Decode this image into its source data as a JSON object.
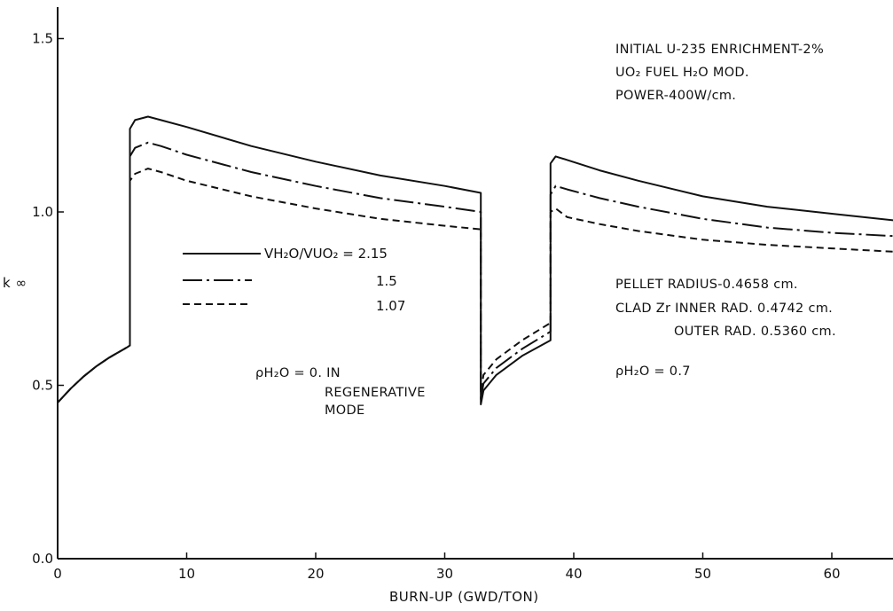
{
  "chart_data": {
    "type": "line",
    "title": "",
    "xlabel": "BURN-UP (GWD/TON)",
    "ylabel": "k ∞",
    "xlim": [
      0,
      65
    ],
    "ylim": [
      0.0,
      1.5
    ],
    "x_ticks": [
      "0",
      "10",
      "20",
      "30",
      "40",
      "50",
      "60"
    ],
    "y_ticks": [
      "0.0",
      "0.5",
      "1.0",
      "1.5"
    ],
    "grid": false,
    "legend_header": "VH₂O/VUO₂ = 2.15",
    "series": [
      {
        "name": "2.15",
        "style": "solid",
        "points": [
          [
            0,
            0.45
          ],
          [
            1,
            0.49
          ],
          [
            2,
            0.525
          ],
          [
            3,
            0.555
          ],
          [
            4,
            0.58
          ],
          [
            5.4,
            0.61
          ],
          [
            5.6,
            0.615
          ],
          [
            5.6,
            1.24
          ],
          [
            6,
            1.265
          ],
          [
            7,
            1.275
          ],
          [
            8,
            1.265
          ],
          [
            10,
            1.245
          ],
          [
            15,
            1.19
          ],
          [
            20,
            1.145
          ],
          [
            25,
            1.105
          ],
          [
            30,
            1.075
          ],
          [
            32.8,
            1.055
          ],
          [
            32.8,
            0.445
          ],
          [
            33,
            0.485
          ],
          [
            34,
            0.53
          ],
          [
            36,
            0.585
          ],
          [
            38.2,
            0.63
          ],
          [
            38.2,
            1.14
          ],
          [
            38.6,
            1.16
          ],
          [
            39.5,
            1.15
          ],
          [
            42,
            1.12
          ],
          [
            45,
            1.09
          ],
          [
            50,
            1.045
          ],
          [
            55,
            1.015
          ],
          [
            60,
            0.995
          ],
          [
            65,
            0.975
          ]
        ]
      },
      {
        "name": "1.5",
        "style": "dash-dot",
        "points": [
          [
            0,
            0.45
          ],
          [
            1,
            0.49
          ],
          [
            2,
            0.525
          ],
          [
            3,
            0.555
          ],
          [
            4,
            0.58
          ],
          [
            5.4,
            0.61
          ],
          [
            5.6,
            0.615
          ],
          [
            5.6,
            1.16
          ],
          [
            6,
            1.185
          ],
          [
            7,
            1.2
          ],
          [
            8,
            1.19
          ],
          [
            10,
            1.165
          ],
          [
            15,
            1.115
          ],
          [
            20,
            1.075
          ],
          [
            25,
            1.04
          ],
          [
            30,
            1.015
          ],
          [
            32.8,
            1.0
          ],
          [
            32.8,
            0.46
          ],
          [
            33,
            0.505
          ],
          [
            34,
            0.55
          ],
          [
            36,
            0.605
          ],
          [
            38.2,
            0.655
          ],
          [
            38.2,
            1.05
          ],
          [
            38.6,
            1.075
          ],
          [
            39.5,
            1.065
          ],
          [
            42,
            1.04
          ],
          [
            45,
            1.015
          ],
          [
            50,
            0.98
          ],
          [
            55,
            0.955
          ],
          [
            60,
            0.94
          ],
          [
            65,
            0.93
          ]
        ]
      },
      {
        "name": "1.07",
        "style": "dashed",
        "points": [
          [
            0,
            0.45
          ],
          [
            1,
            0.49
          ],
          [
            2,
            0.525
          ],
          [
            3,
            0.555
          ],
          [
            4,
            0.58
          ],
          [
            5.4,
            0.61
          ],
          [
            5.6,
            0.615
          ],
          [
            5.6,
            1.09
          ],
          [
            6,
            1.11
          ],
          [
            7,
            1.125
          ],
          [
            8,
            1.115
          ],
          [
            10,
            1.09
          ],
          [
            15,
            1.045
          ],
          [
            20,
            1.01
          ],
          [
            25,
            0.98
          ],
          [
            30,
            0.96
          ],
          [
            32.8,
            0.95
          ],
          [
            32.8,
            0.48
          ],
          [
            33,
            0.53
          ],
          [
            34,
            0.575
          ],
          [
            36,
            0.63
          ],
          [
            38.2,
            0.68
          ],
          [
            38.2,
            1.0
          ],
          [
            38.6,
            1.01
          ],
          [
            39.5,
            0.985
          ],
          [
            42,
            0.965
          ],
          [
            45,
            0.945
          ],
          [
            50,
            0.92
          ],
          [
            55,
            0.905
          ],
          [
            60,
            0.895
          ],
          [
            65,
            0.885
          ]
        ]
      }
    ],
    "annotations": {
      "top_right": [
        "INITIAL U-235 ENRICHMENT-2%",
        "UO₂ FUEL H₂O MOD.",
        "POWER-400W/cm."
      ],
      "mid_right": [
        "PELLET RADIUS-0.4658 cm.",
        "CLAD Zr INNER RAD. 0.4742 cm.",
        "OUTER RAD. 0.5360 cm."
      ],
      "rho_right": "ρH₂O = 0.7",
      "rho_left": [
        "ρH₂O = 0. IN",
        "REGENERATIVE",
        "MODE"
      ]
    }
  }
}
